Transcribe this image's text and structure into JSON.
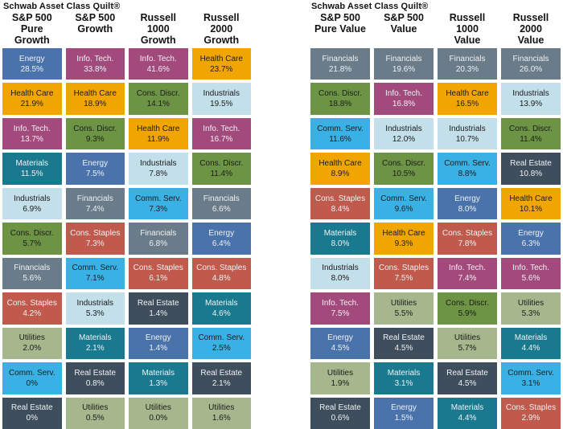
{
  "colors": {
    "light_text": "#eef1f3",
    "dark_text": "#1c1c1c",
    "background": "#ffffff"
  },
  "palette": {
    "Energy": {
      "bg": "#4a73ac",
      "text": "light"
    },
    "Info. Tech.": {
      "bg": "#a34a7d",
      "text": "light"
    },
    "Health Care": {
      "bg": "#f0a500",
      "text": "dark"
    },
    "Cons. Discr.": {
      "bg": "#6d9345",
      "text": "dark"
    },
    "Industrials": {
      "bg": "#c3dfe9",
      "text": "dark"
    },
    "Materials": {
      "bg": "#19798e",
      "text": "light"
    },
    "Financials": {
      "bg": "#6a7b89",
      "text": "light"
    },
    "Comm. Serv.": {
      "bg": "#3ab1e4",
      "text": "dark"
    },
    "Cons. Staples": {
      "bg": "#bf5a4d",
      "text": "light"
    },
    "Real Estate": {
      "bg": "#3e4e5c",
      "text": "light"
    },
    "Utilities": {
      "bg": "#a7b78d",
      "text": "dark"
    }
  },
  "chart_data": [
    {
      "type": "table",
      "title": "Schwab Asset Class Quilt®",
      "group": "Growth",
      "legend_position": "none",
      "columns": [
        {
          "header": [
            "S&P 500",
            "Pure Growth"
          ],
          "cells": [
            [
              "Energy",
              "28.5%"
            ],
            [
              "Health Care",
              "21.9%"
            ],
            [
              "Info. Tech.",
              "13.7%"
            ],
            [
              "Materials",
              "11.5%"
            ],
            [
              "Industrials",
              "6.9%"
            ],
            [
              "Cons. Discr.",
              "5.7%"
            ],
            [
              "Financials",
              "5.6%"
            ],
            [
              "Cons. Staples",
              "4.2%"
            ],
            [
              "Utilities",
              "2.0%"
            ],
            [
              "Comm. Serv.",
              "0%"
            ],
            [
              "Real Estate",
              "0%"
            ]
          ]
        },
        {
          "header": [
            "S&P 500",
            "Growth"
          ],
          "cells": [
            [
              "Info. Tech.",
              "33.8%"
            ],
            [
              "Health Care",
              "18.9%"
            ],
            [
              "Cons. Discr.",
              "9.3%"
            ],
            [
              "Energy",
              "7.5%"
            ],
            [
              "Financials",
              "7.4%"
            ],
            [
              "Cons. Staples",
              "7.3%"
            ],
            [
              "Comm. Serv.",
              "7.1%"
            ],
            [
              "Industrials",
              "5.3%"
            ],
            [
              "Materials",
              "2.1%"
            ],
            [
              "Real Estate",
              "0.8%"
            ],
            [
              "Utilities",
              "0.5%"
            ]
          ]
        },
        {
          "header": [
            "Russell 1000",
            "Growth"
          ],
          "cells": [
            [
              "Info. Tech.",
              "41.6%"
            ],
            [
              "Cons. Discr.",
              "14.1%"
            ],
            [
              "Health Care",
              "11.9%"
            ],
            [
              "Industrials",
              "7.8%"
            ],
            [
              "Comm. Serv.",
              "7.3%"
            ],
            [
              "Financials",
              "6.8%"
            ],
            [
              "Cons. Staples",
              "6.1%"
            ],
            [
              "Real Estate",
              "1.4%"
            ],
            [
              "Energy",
              "1.4%"
            ],
            [
              "Materials",
              "1.3%"
            ],
            [
              "Utilities",
              "0.0%"
            ]
          ]
        },
        {
          "header": [
            "Russell 2000",
            "Growth"
          ],
          "cells": [
            [
              "Health Care",
              "23.7%"
            ],
            [
              "Industrials",
              "19.5%"
            ],
            [
              "Info. Tech.",
              "16.7%"
            ],
            [
              "Cons. Discr.",
              "11.4%"
            ],
            [
              "Financials",
              "6.6%"
            ],
            [
              "Energy",
              "6.4%"
            ],
            [
              "Cons. Staples",
              "4.8%"
            ],
            [
              "Materials",
              "4.6%"
            ],
            [
              "Comm. Serv.",
              "2.5%"
            ],
            [
              "Real Estate",
              "2.1%"
            ],
            [
              "Utilities",
              "1.6%"
            ]
          ]
        }
      ]
    },
    {
      "type": "table",
      "title": "Schwab Asset Class Quilt®",
      "group": "Value",
      "legend_position": "none",
      "columns": [
        {
          "header": [
            "S&P 500",
            "Pure Value"
          ],
          "cells": [
            [
              "Financials",
              "21.8%"
            ],
            [
              "Cons. Discr.",
              "18.8%"
            ],
            [
              "Comm. Serv.",
              "11.6%"
            ],
            [
              "Health Care",
              "8.9%"
            ],
            [
              "Cons. Staples",
              "8.4%"
            ],
            [
              "Materials",
              "8.0%"
            ],
            [
              "Industrials",
              "8.0%"
            ],
            [
              "Info. Tech.",
              "7.5%"
            ],
            [
              "Energy",
              "4.5%"
            ],
            [
              "Utilities",
              "1.9%"
            ],
            [
              "Real Estate",
              "0.6%"
            ]
          ]
        },
        {
          "header": [
            "S&P 500",
            "Value"
          ],
          "cells": [
            [
              "Financials",
              "19.6%"
            ],
            [
              "Info. Tech.",
              "16.8%"
            ],
            [
              "Industrials",
              "12.0%"
            ],
            [
              "Cons. Discr.",
              "10.5%"
            ],
            [
              "Comm. Serv.",
              "9.6%"
            ],
            [
              "Health Care",
              "9.3%"
            ],
            [
              "Cons. Staples",
              "7.5%"
            ],
            [
              "Utilities",
              "5.5%"
            ],
            [
              "Real Estate",
              "4.5%"
            ],
            [
              "Materials",
              "3.1%"
            ],
            [
              "Energy",
              "1.5%"
            ]
          ]
        },
        {
          "header": [
            "Russell 1000",
            "Value"
          ],
          "cells": [
            [
              "Financials",
              "20.3%"
            ],
            [
              "Health Care",
              "16.5%"
            ],
            [
              "Industrials",
              "10.7%"
            ],
            [
              "Comm. Serv.",
              "8.8%"
            ],
            [
              "Energy",
              "8.0%"
            ],
            [
              "Cons. Staples",
              "7.8%"
            ],
            [
              "Info. Tech.",
              "7.4%"
            ],
            [
              "Cons. Discr.",
              "5.9%"
            ],
            [
              "Utilities",
              "5.7%"
            ],
            [
              "Real Estate",
              "4.5%"
            ],
            [
              "Materials",
              "4.4%"
            ]
          ]
        },
        {
          "header": [
            "Russell 2000",
            "Value"
          ],
          "cells": [
            [
              "Financials",
              "26.0%"
            ],
            [
              "Industrials",
              "13.9%"
            ],
            [
              "Cons. Discr.",
              "11.4%"
            ],
            [
              "Real Estate",
              "10.8%"
            ],
            [
              "Health Care",
              "10.1%"
            ],
            [
              "Energy",
              "6.3%"
            ],
            [
              "Info. Tech.",
              "5.6%"
            ],
            [
              "Utilities",
              "5.3%"
            ],
            [
              "Materials",
              "4.4%"
            ],
            [
              "Comm. Serv.",
              "3.1%"
            ],
            [
              "Cons. Staples",
              "2.9%"
            ]
          ]
        }
      ]
    }
  ]
}
